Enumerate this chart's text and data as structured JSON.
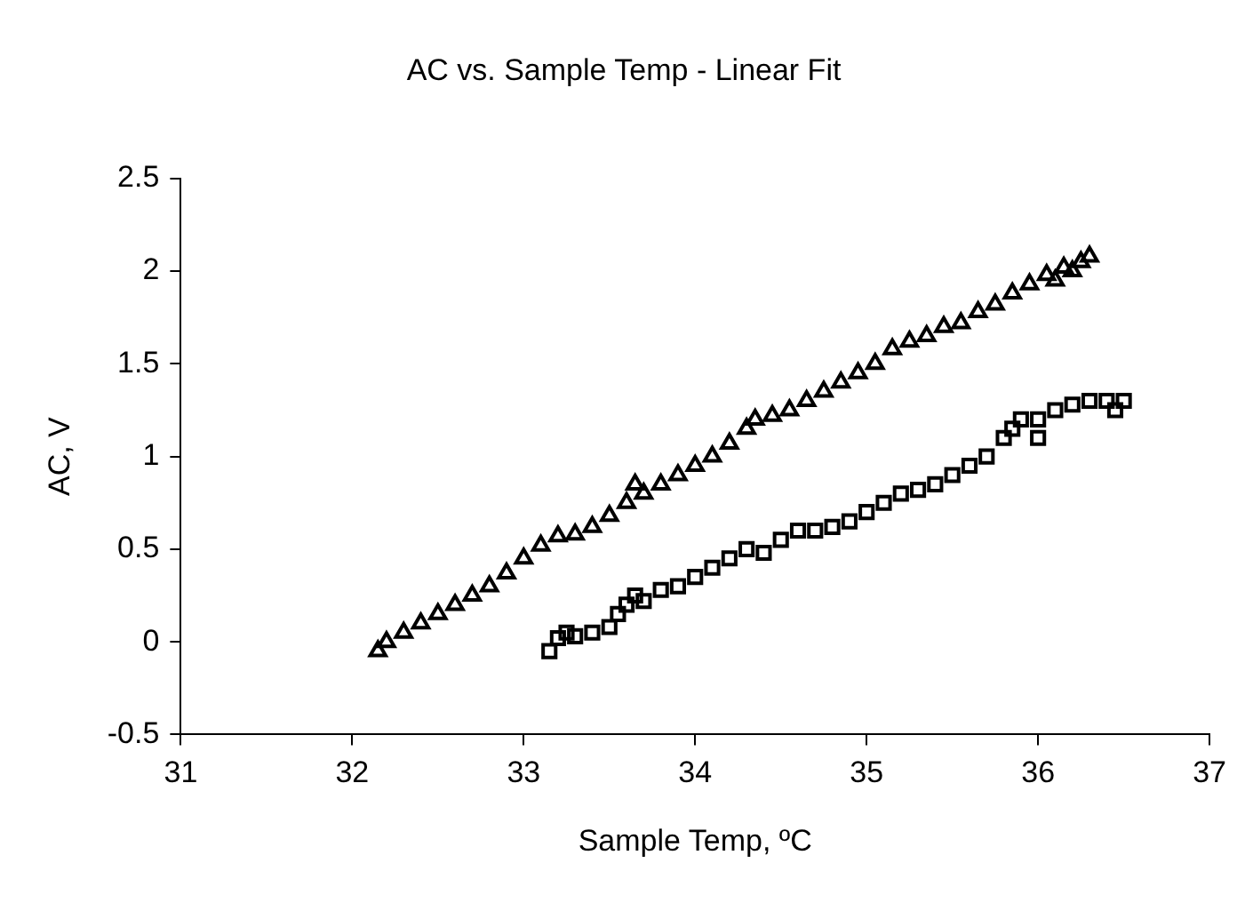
{
  "chart_data": {
    "type": "scatter",
    "title": "AC vs. Sample Temp - Linear Fit",
    "xlabel": "Sample Temp, ºC",
    "ylabel": "AC, V",
    "xlim": [
      31,
      37
    ],
    "xticks": [
      31,
      32,
      33,
      34,
      35,
      36,
      37
    ],
    "ylim": [
      -0.5,
      2.5
    ],
    "yticks": [
      -0.5,
      0,
      0.5,
      1,
      1.5,
      2,
      2.5
    ],
    "grid": false,
    "legend": false,
    "series": [
      {
        "color": "#000000",
        "marker": "triangle",
        "x": [
          32.15,
          32.2,
          32.3,
          32.4,
          32.5,
          32.6,
          32.7,
          32.8,
          32.9,
          33.0,
          33.1,
          33.2,
          33.3,
          33.4,
          33.5,
          33.6,
          33.65,
          33.7,
          33.8,
          33.9,
          34.0,
          34.1,
          34.2,
          34.3,
          34.35,
          34.45,
          34.55,
          34.65,
          34.75,
          34.85,
          34.95,
          35.05,
          35.15,
          35.25,
          35.35,
          35.45,
          35.55,
          35.65,
          35.75,
          35.85,
          35.95,
          36.05,
          36.1,
          36.15,
          36.2,
          36.25,
          36.3
        ],
        "values": [
          -0.05,
          0.0,
          0.05,
          0.1,
          0.15,
          0.2,
          0.25,
          0.3,
          0.37,
          0.45,
          0.52,
          0.57,
          0.58,
          0.62,
          0.68,
          0.75,
          0.85,
          0.8,
          0.85,
          0.9,
          0.95,
          1.0,
          1.07,
          1.15,
          1.2,
          1.22,
          1.25,
          1.3,
          1.35,
          1.4,
          1.45,
          1.5,
          1.58,
          1.62,
          1.65,
          1.7,
          1.72,
          1.78,
          1.82,
          1.88,
          1.93,
          1.98,
          1.95,
          2.02,
          2.0,
          2.05,
          2.08
        ]
      },
      {
        "color": "#000000",
        "marker": "square",
        "x": [
          33.15,
          33.2,
          33.25,
          33.3,
          33.4,
          33.5,
          33.55,
          33.6,
          33.65,
          33.7,
          33.8,
          33.9,
          34.0,
          34.1,
          34.2,
          34.3,
          34.4,
          34.5,
          34.6,
          34.7,
          34.8,
          34.9,
          35.0,
          35.1,
          35.2,
          35.3,
          35.4,
          35.5,
          35.6,
          35.7,
          35.8,
          35.85,
          35.9,
          36.0,
          36.0,
          36.1,
          36.2,
          36.3,
          36.4,
          36.45,
          36.5
        ],
        "values": [
          -0.05,
          0.02,
          0.05,
          0.03,
          0.05,
          0.08,
          0.15,
          0.2,
          0.25,
          0.22,
          0.28,
          0.3,
          0.35,
          0.4,
          0.45,
          0.5,
          0.48,
          0.55,
          0.6,
          0.6,
          0.62,
          0.65,
          0.7,
          0.75,
          0.8,
          0.82,
          0.85,
          0.9,
          0.95,
          1.0,
          1.1,
          1.15,
          1.2,
          1.2,
          1.1,
          1.25,
          1.28,
          1.3,
          1.3,
          1.25,
          1.3
        ]
      }
    ]
  }
}
